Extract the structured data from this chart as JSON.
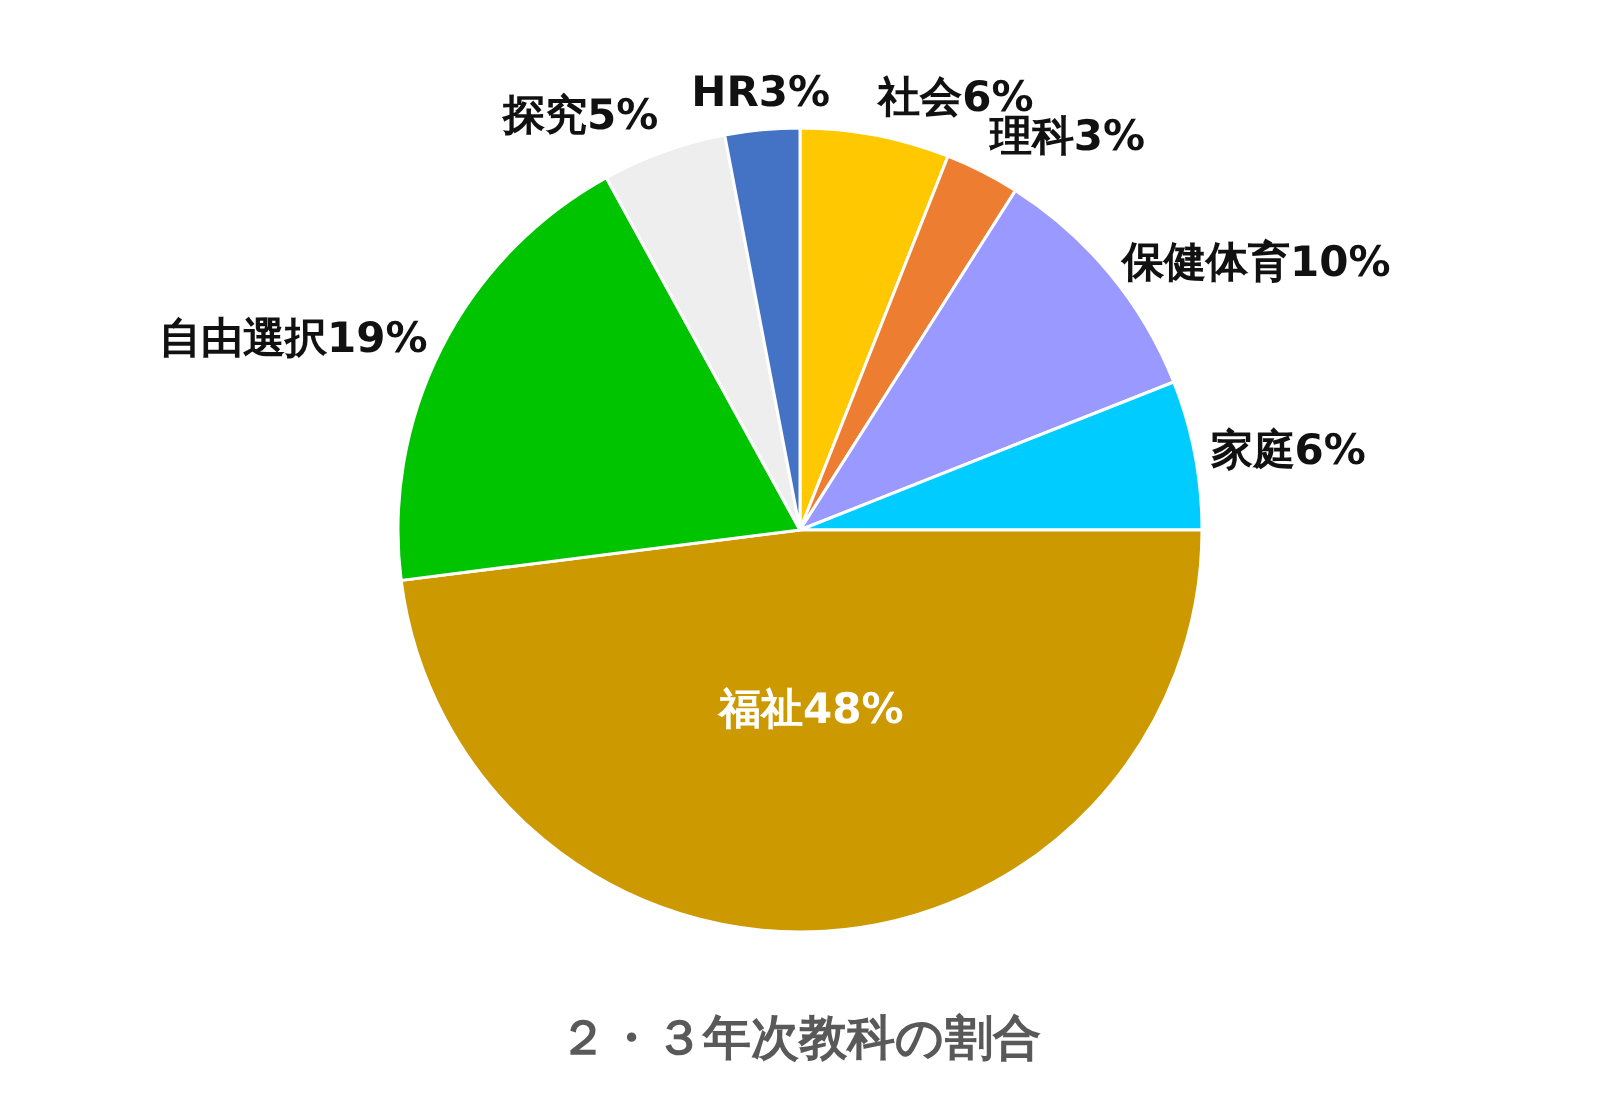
{
  "chart_data": {
    "type": "pie",
    "title": "２・３年次教科の割合",
    "categories": [
      "社会",
      "理科",
      "保健体育",
      "家庭",
      "福祉",
      "自由選択",
      "探究",
      "HR"
    ],
    "values": [
      6,
      3,
      10,
      6,
      48,
      19,
      5,
      3
    ],
    "colors": [
      "#ffc800",
      "#ed7d31",
      "#9999ff",
      "#00ccff",
      "#cc9900",
      "#00c400",
      "#eeeeee",
      "#4472c4"
    ],
    "value_labels": [
      "6%",
      "3%",
      "10%",
      "6%",
      "48%",
      "19%",
      "5%",
      "3%"
    ]
  }
}
